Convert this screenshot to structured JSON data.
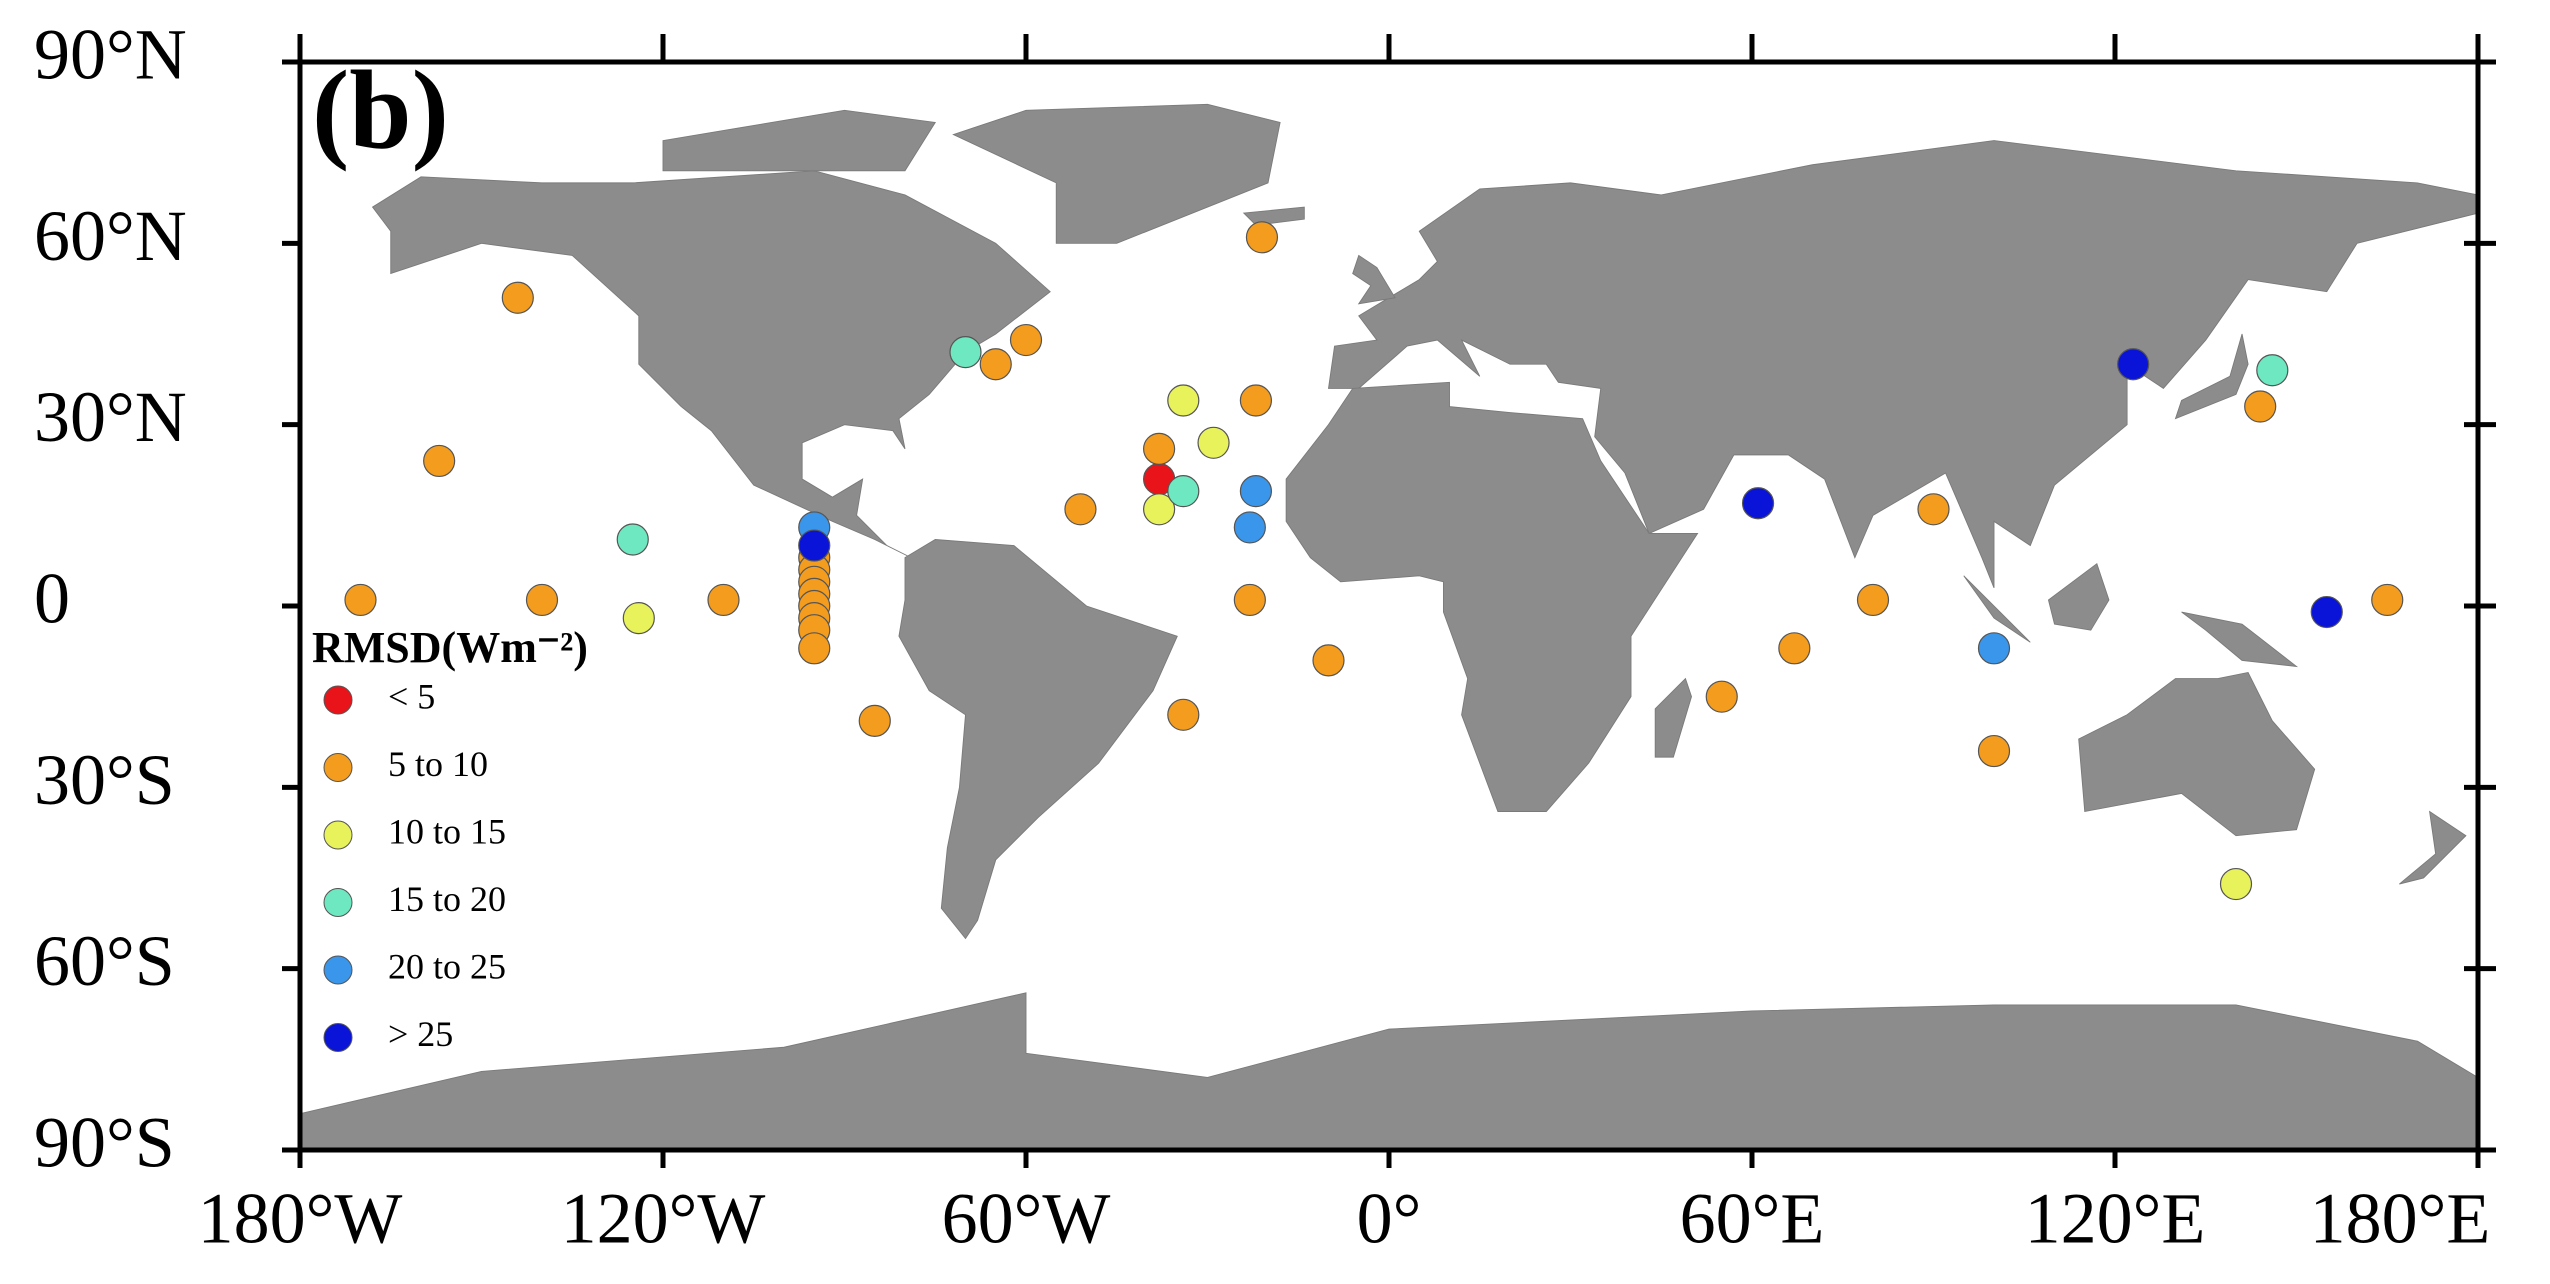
{
  "chart_data": {
    "type": "scatter",
    "annotation": "(b)",
    "legend_title": "RMSD(Wm⁻²)",
    "xlim": [
      -180,
      180
    ],
    "ylim": [
      -90,
      90
    ],
    "xticks": [
      {
        "value": -180,
        "label": "180°W"
      },
      {
        "value": -120,
        "label": "120°W"
      },
      {
        "value": -60,
        "label": "60°W"
      },
      {
        "value": 0,
        "label": "0°"
      },
      {
        "value": 60,
        "label": "60°E"
      },
      {
        "value": 120,
        "label": "120°E"
      },
      {
        "value": 180,
        "label": "180°E"
      }
    ],
    "yticks": [
      {
        "value": 90,
        "label": "90°N"
      },
      {
        "value": 60,
        "label": "60°N"
      },
      {
        "value": 30,
        "label": "30°N"
      },
      0,
      {
        "value": -30,
        "label": "30°S"
      },
      {
        "value": -60,
        "label": "60°S"
      },
      {
        "value": -90,
        "label": "90°S"
      }
    ],
    "series": [
      {
        "name": "< 5",
        "color": "#e8141a",
        "x": [
          -38
        ],
        "values": [
          21
        ]
      },
      {
        "name": "5 to 10",
        "color": "#f39c1e",
        "x": [
          -21,
          -144,
          -60,
          -65,
          -22,
          144,
          -157,
          -38,
          -51,
          90,
          -170,
          -140,
          -110,
          -23,
          80,
          165,
          -95,
          -95,
          -95,
          -95,
          -95,
          -95,
          -95,
          -95,
          -10,
          67,
          -85,
          -34,
          55,
          100
        ],
        "values": [
          61,
          51,
          44,
          40,
          34,
          33,
          24,
          26,
          16,
          16,
          1,
          1,
          1,
          1,
          1,
          1,
          8,
          6,
          4,
          2,
          0,
          -2,
          -4,
          -7,
          -9,
          -7,
          -19,
          -18,
          -15,
          -24
        ]
      },
      {
        "name": "10 to 15",
        "color": "#e8f25a",
        "x": [
          -34,
          -29,
          -38,
          -124,
          140
        ],
        "values": [
          34,
          27,
          16,
          -2,
          -46
        ]
      },
      {
        "name": "15 to 20",
        "color": "#6ee8c0",
        "x": [
          -70,
          -34,
          -125,
          146
        ],
        "values": [
          42,
          19,
          11,
          39
        ]
      },
      {
        "name": "20 to 25",
        "color": "#3a96ea",
        "x": [
          -22,
          -23,
          -95,
          100
        ],
        "values": [
          19,
          13,
          13,
          -7
        ]
      },
      {
        "name": "> 25",
        "color": "#0a14d8",
        "x": [
          123,
          61,
          155,
          -95
        ],
        "values": [
          40,
          17,
          -1,
          10
        ]
      }
    ]
  }
}
